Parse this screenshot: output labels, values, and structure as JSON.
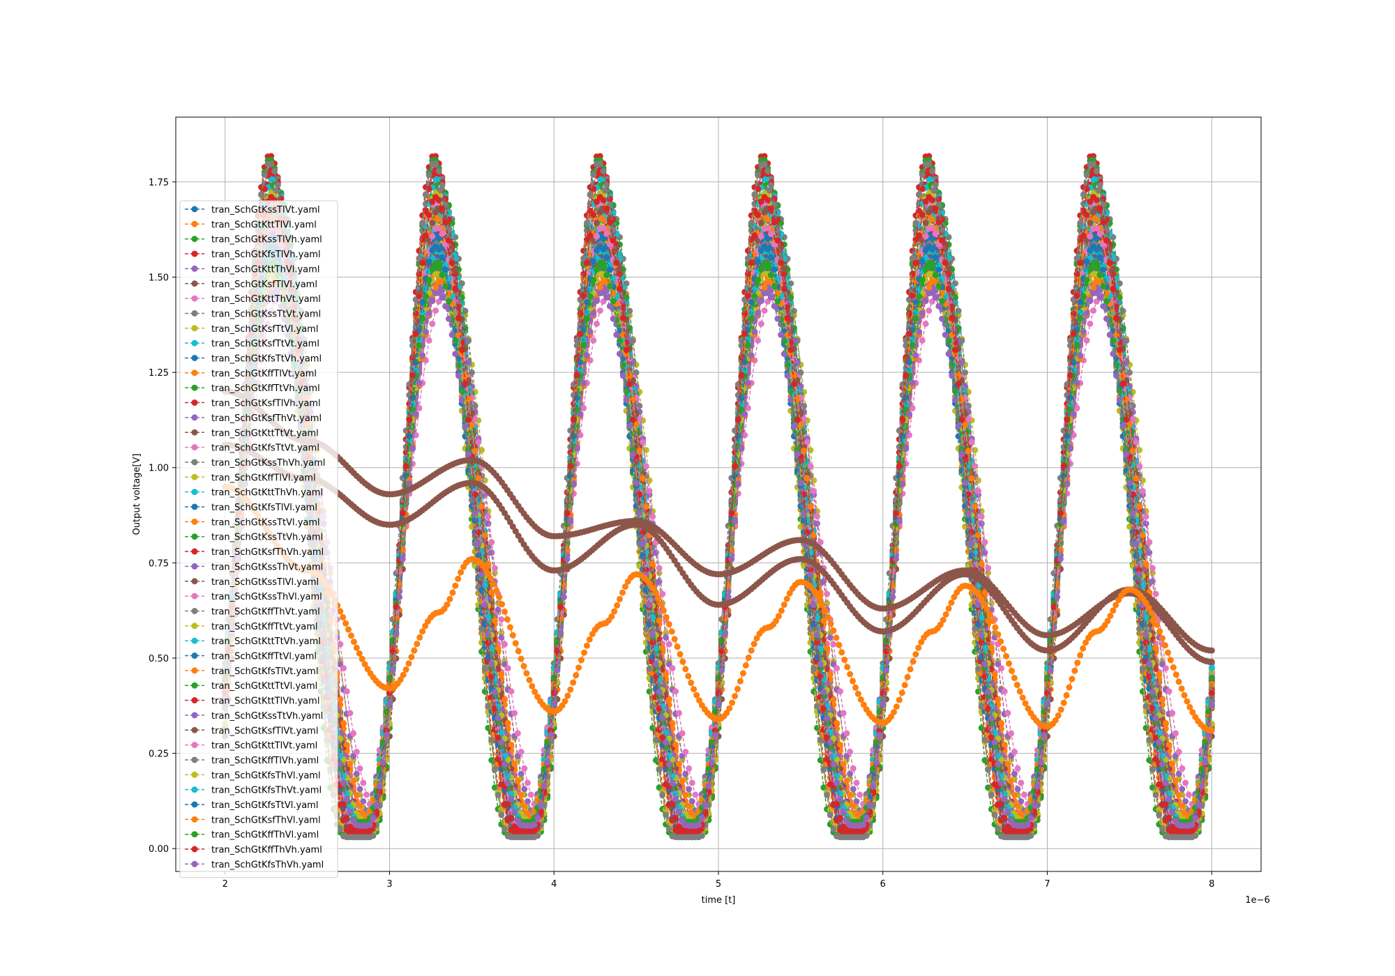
{
  "chart_data": {
    "type": "line",
    "title": "",
    "xlabel": "time [t]",
    "ylabel": "Output voltage[V]",
    "x_offset_text": "1e−6",
    "xlim": [
      1.7,
      8.3
    ],
    "ylim": [
      -0.06,
      1.92
    ],
    "x_unit_scale": 1e-06,
    "xticks": [
      2,
      3,
      4,
      5,
      6,
      7,
      8
    ],
    "xtick_labels": [
      "2",
      "3",
      "4",
      "5",
      "6",
      "7",
      "8"
    ],
    "yticks": [
      0.0,
      0.25,
      0.5,
      0.75,
      1.0,
      1.25,
      1.5,
      1.75
    ],
    "ytick_labels": [
      "0.00",
      "0.25",
      "0.50",
      "0.75",
      "1.00",
      "1.25",
      "1.50",
      "1.75"
    ],
    "grid": true,
    "legend_position": "left, upper",
    "marker": "circle",
    "linestyle": "dashed",
    "period": 1.0,
    "x_start": 2.0,
    "x_end": 8.0,
    "palette": [
      "#1f77b4",
      "#ff7f0e",
      "#2ca02c",
      "#d62728",
      "#9467bd",
      "#8c564b",
      "#e377c2",
      "#7f7f7f",
      "#bcbd22",
      "#17becf"
    ],
    "series": [
      {
        "name": "tran_SchGtKssTlVt.yaml",
        "peak_x": 2.3,
        "high": 1.61,
        "low": 0.05,
        "rise": 0.22,
        "fall": 0.26
      },
      {
        "name": "tran_SchGtKttTlVl.yaml",
        "peak_x": 2.29,
        "high": 1.53,
        "low": 0.05,
        "rise": 0.2,
        "fall": 0.24
      },
      {
        "name": "tran_SchGtKssTlVh.yaml",
        "peak_x": 2.3,
        "high": 1.69,
        "low": 0.06,
        "rise": 0.22,
        "fall": 0.26
      },
      {
        "name": "tran_SchGtKfsTlVh.yaml",
        "peak_x": 2.27,
        "high": 1.82,
        "low": 0.05,
        "rise": 0.19,
        "fall": 0.23
      },
      {
        "name": "tran_SchGtKttThVl.yaml",
        "peak_x": 2.29,
        "high": 1.48,
        "low": 0.08,
        "rise": 0.22,
        "fall": 0.27
      },
      {
        "name": "tran_SchGtKsfTlVl.yaml",
        "peak_x": 2.3,
        "high": 1.67,
        "low": 0.04,
        "rise": 0.2,
        "fall": 0.25
      },
      {
        "name": "tran_SchGtKttThVt.yaml",
        "peak_x": 2.31,
        "high": 1.57,
        "low": 0.06,
        "rise": 0.23,
        "fall": 0.28
      },
      {
        "name": "tran_SchGtKssTtVt.yaml",
        "peak_x": 2.28,
        "high": 1.79,
        "low": 0.03,
        "rise": 0.21,
        "fall": 0.25
      },
      {
        "name": "tran_SchGtKsfTtVl.yaml",
        "peak_x": 2.32,
        "high": 1.63,
        "low": 0.06,
        "rise": 0.24,
        "fall": 0.29
      },
      {
        "name": "tran_SchGtKsfTtVt.yaml",
        "peak_x": 2.3,
        "high": 1.71,
        "low": 0.05,
        "rise": 0.22,
        "fall": 0.27
      },
      {
        "name": "tran_SchGtKfsTtVh.yaml",
        "peak_x": 2.29,
        "high": 1.6,
        "low": 0.07,
        "rise": 0.21,
        "fall": 0.26
      },
      {
        "name": "tran_SchGtKffTlVt.yaml",
        "peak_x": 2.27,
        "high": 1.74,
        "low": 0.04,
        "rise": 0.19,
        "fall": 0.23
      },
      {
        "name": "tran_SchGtKffTtVh.yaml",
        "peak_x": 2.27,
        "high": 1.81,
        "low": 0.04,
        "rise": 0.18,
        "fall": 0.22
      },
      {
        "name": "tran_SchGtKsfTlVh.yaml",
        "peak_x": 2.29,
        "high": 1.77,
        "low": 0.05,
        "rise": 0.2,
        "fall": 0.24
      },
      {
        "name": "tran_SchGtKsfThVt.yaml",
        "peak_x": 2.3,
        "high": 1.52,
        "low": 0.07,
        "rise": 0.23,
        "fall": 0.28
      },
      {
        "name": "tran_SchGtKttTtVt.yaml",
        "peak_x": 2.29,
        "high": 1.65,
        "low": 0.05,
        "rise": 0.21,
        "fall": 0.25
      },
      {
        "name": "tran_SchGtKfsTtVt.yaml",
        "peak_x": 2.28,
        "high": 1.7,
        "low": 0.04,
        "rise": 0.2,
        "fall": 0.24
      },
      {
        "name": "tran_SchGtKssThVh.yaml",
        "peak_x": 2.31,
        "high": 1.73,
        "low": 0.04,
        "rise": 0.23,
        "fall": 0.27
      },
      {
        "name": "tran_SchGtKffTlVl.yaml",
        "peak_x": 2.27,
        "high": 1.64,
        "low": 0.05,
        "rise": 0.19,
        "fall": 0.23
      },
      {
        "name": "tran_SchGtKttThVh.yaml",
        "peak_x": 2.3,
        "high": 1.66,
        "low": 0.06,
        "rise": 0.22,
        "fall": 0.26
      },
      {
        "name": "tran_SchGtKfsTlVl.yaml",
        "peak_x": 2.28,
        "high": 1.56,
        "low": 0.05,
        "rise": 0.2,
        "fall": 0.24
      },
      {
        "name": "tran_SchGtKssTtVl.yaml",
        "peak_x": 2.31,
        "high": 1.5,
        "low": 0.06,
        "rise": 0.23,
        "fall": 0.28
      },
      {
        "name": "tran_SchGtKssTtVh.yaml",
        "peak_x": 2.3,
        "high": 1.75,
        "low": 0.05,
        "rise": 0.22,
        "fall": 0.26
      },
      {
        "name": "tran_SchGtKsfThVh.yaml",
        "peak_x": 2.3,
        "high": 1.62,
        "low": 0.07,
        "rise": 0.22,
        "fall": 0.27
      },
      {
        "name": "tran_SchGtKssThVt.yaml",
        "peak_x": 2.32,
        "high": 1.55,
        "low": 0.08,
        "rise": 0.24,
        "fall": 0.29
      },
      {
        "name": "tran_SchGtKssTlVl.yaml",
        "peak_x": 2.31,
        "high": 1.58,
        "low": 0.05,
        "rise": 0.23,
        "fall": 0.27
      },
      {
        "name": "tran_SchGtKssThVl.yaml",
        "peak_x": 2.33,
        "high": 1.45,
        "low": 0.09,
        "rise": 0.25,
        "fall": 0.3
      },
      {
        "name": "tran_SchGtKffThVt.yaml",
        "peak_x": 2.28,
        "high": 1.59,
        "low": 0.06,
        "rise": 0.2,
        "fall": 0.25
      },
      {
        "name": "tran_SchGtKffTtVt.yaml",
        "peak_x": 2.28,
        "high": 1.72,
        "low": 0.04,
        "rise": 0.19,
        "fall": 0.24
      },
      {
        "name": "tran_SchGtKttTtVh.yaml",
        "peak_x": 2.29,
        "high": 1.76,
        "low": 0.05,
        "rise": 0.21,
        "fall": 0.25
      },
      {
        "name": "tran_SchGtKffTtVl.yaml",
        "peak_x": 2.28,
        "high": 1.61,
        "low": 0.05,
        "rise": 0.2,
        "fall": 0.24
      },
      {
        "name": "tran_SchGtKfsTlVt.yaml",
        "peak_x": 2.28,
        "high": 1.66,
        "low": 0.04,
        "rise": 0.2,
        "fall": 0.24
      },
      {
        "name": "tran_SchGtKttTtVl.yaml",
        "peak_x": 2.29,
        "high": 1.54,
        "low": 0.06,
        "rise": 0.21,
        "fall": 0.26
      },
      {
        "name": "tran_SchGtKttTlVh.yaml",
        "peak_x": 2.28,
        "high": 1.78,
        "low": 0.04,
        "rise": 0.2,
        "fall": 0.24
      },
      {
        "name": "tran_SchGtKssTtVh.yaml",
        "peak_x": 2.3,
        "high": 1.47,
        "low": 0.07,
        "rise": 0.22,
        "fall": 0.27
      },
      {
        "name": "tran_SchGtKsfTlVt.yaml",
        "peak_x": 2.3,
        "high": 1.68,
        "low": 0.05,
        "rise": 0.22,
        "fall": 0.26
      },
      {
        "name": "tran_SchGtKttTlVt.yaml",
        "peak_x": 2.29,
        "high": 1.63,
        "low": 0.05,
        "rise": 0.21,
        "fall": 0.25
      },
      {
        "name": "tran_SchGtKffTlVh.yaml",
        "peak_x": 2.27,
        "high": 1.8,
        "low": 0.03,
        "rise": 0.19,
        "fall": 0.23
      },
      {
        "name": "tran_SchGtKfsThVl.yaml",
        "peak_x": 2.29,
        "high": 1.51,
        "low": 0.08,
        "rise": 0.22,
        "fall": 0.27
      },
      {
        "name": "tran_SchGtKfsThVt.yaml",
        "peak_x": 2.29,
        "high": 1.57,
        "low": 0.07,
        "rise": 0.22,
        "fall": 0.26
      },
      {
        "name": "tran_SchGtKfsTtVl.yaml",
        "peak_x": 2.28,
        "high": 1.58,
        "low": 0.05,
        "rise": 0.21,
        "fall": 0.25
      },
      {
        "name": "tran_SchGtKsfThVl.yaml",
        "peak_x": 2.31,
        "high": 1.49,
        "low": 0.08,
        "rise": 0.23,
        "fall": 0.28
      },
      {
        "name": "tran_SchGtKffThVl.yaml",
        "peak_x": 2.28,
        "high": 1.53,
        "low": 0.07,
        "rise": 0.21,
        "fall": 0.26
      },
      {
        "name": "tran_SchGtKffThVh.yaml",
        "peak_x": 2.28,
        "high": 1.71,
        "low": 0.05,
        "rise": 0.2,
        "fall": 0.25
      },
      {
        "name": "tran_SchGtKfsThVh.yaml",
        "peak_x": 2.29,
        "high": 1.46,
        "low": 0.06,
        "rise": 0.21,
        "fall": 0.26
      }
    ],
    "slow_series": [
      {
        "label_of": "tran_SchGtKssTlVl.yaml",
        "color": "#8c564b",
        "points": [
          [
            2.0,
            1.2
          ],
          [
            2.5,
            1.07
          ],
          [
            3.0,
            0.93
          ],
          [
            3.5,
            1.02
          ],
          [
            4.0,
            0.82
          ],
          [
            4.5,
            0.86
          ],
          [
            5.0,
            0.72
          ],
          [
            5.5,
            0.81
          ],
          [
            6.0,
            0.63
          ],
          [
            6.5,
            0.73
          ],
          [
            7.0,
            0.56
          ],
          [
            7.5,
            0.67
          ],
          [
            8.0,
            0.49
          ]
        ]
      },
      {
        "label_of": "tran_SchGtKsfTlVl.yaml",
        "color": "#8c564b",
        "points": [
          [
            2.0,
            1.06
          ],
          [
            2.5,
            0.97
          ],
          [
            3.0,
            0.85
          ],
          [
            3.5,
            0.96
          ],
          [
            4.0,
            0.73
          ],
          [
            4.5,
            0.85
          ],
          [
            5.0,
            0.64
          ],
          [
            5.5,
            0.76
          ],
          [
            6.0,
            0.57
          ],
          [
            6.5,
            0.72
          ],
          [
            7.0,
            0.52
          ],
          [
            7.5,
            0.68
          ],
          [
            8.0,
            0.52
          ]
        ]
      },
      {
        "label_of": "tran_SchGtKssTtVl.yaml",
        "color": "#ff7f0e",
        "points": [
          [
            2.0,
            0.95
          ],
          [
            2.5,
            0.73
          ],
          [
            3.0,
            0.42
          ],
          [
            3.3,
            0.62
          ],
          [
            3.5,
            0.76
          ],
          [
            4.0,
            0.36
          ],
          [
            4.3,
            0.59
          ],
          [
            4.5,
            0.72
          ],
          [
            5.0,
            0.34
          ],
          [
            5.3,
            0.58
          ],
          [
            5.5,
            0.7
          ],
          [
            6.0,
            0.33
          ],
          [
            6.3,
            0.57
          ],
          [
            6.5,
            0.69
          ],
          [
            7.0,
            0.32
          ],
          [
            7.3,
            0.57
          ],
          [
            7.5,
            0.68
          ],
          [
            8.0,
            0.31
          ]
        ]
      }
    ]
  }
}
